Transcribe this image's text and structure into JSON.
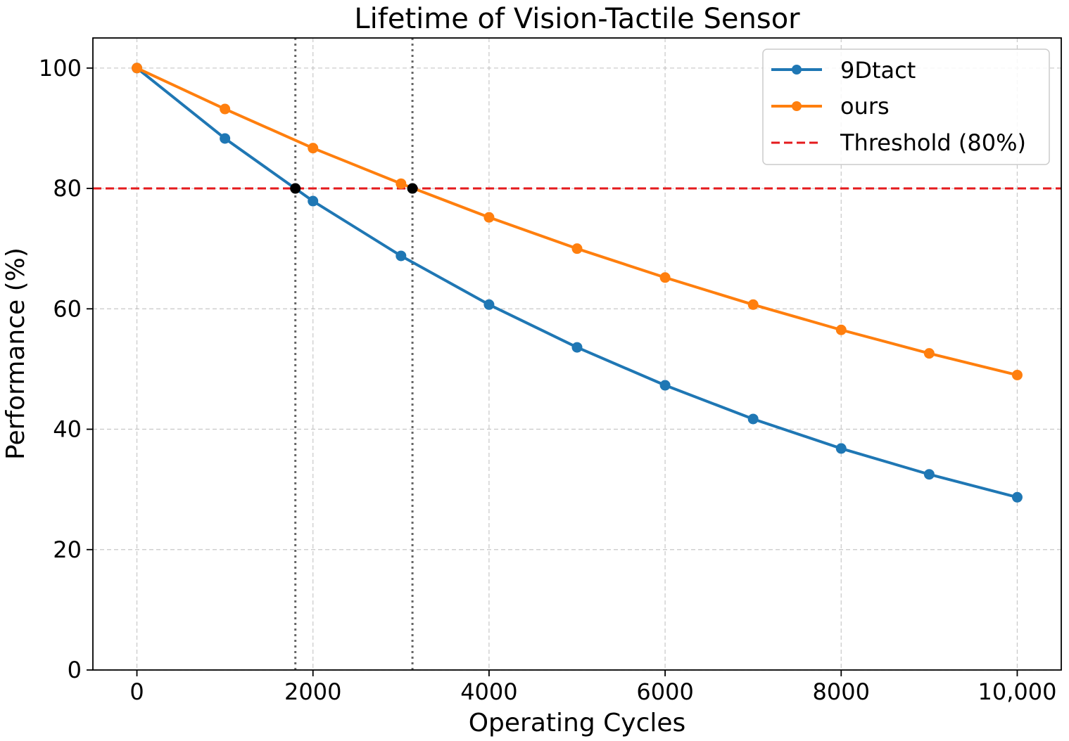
{
  "chart_data": {
    "type": "line",
    "title": "Lifetime of Vision-Tactile Sensor",
    "xlabel": "Operating Cycles",
    "ylabel": "Performance (%)",
    "xlim": [
      -500,
      10500
    ],
    "ylim": [
      0,
      105
    ],
    "x_ticks": [
      0,
      2000,
      4000,
      6000,
      8000,
      10000
    ],
    "x_tick_labels": [
      "0",
      "2000",
      "4000",
      "6000",
      "8000",
      "10,000"
    ],
    "y_ticks": [
      0,
      20,
      40,
      60,
      80,
      100
    ],
    "y_tick_labels": [
      "0",
      "20",
      "40",
      "60",
      "80",
      "100"
    ],
    "grid": true,
    "legend_position": "top-right",
    "x": [
      0,
      1000,
      2000,
      3000,
      4000,
      5000,
      6000,
      7000,
      8000,
      9000,
      10000
    ],
    "series": [
      {
        "name": "9Dtact",
        "color": "#1f77b4",
        "values": [
          100,
          88.3,
          77.9,
          68.8,
          60.7,
          53.6,
          47.3,
          41.7,
          36.8,
          32.5,
          28.7
        ]
      },
      {
        "name": "ours",
        "color": "#ff7f0e",
        "values": [
          100,
          93.2,
          86.7,
          80.8,
          75.2,
          70.0,
          65.2,
          60.7,
          56.5,
          52.6,
          49.0
        ]
      }
    ],
    "threshold": {
      "name": "Threshold (80%)",
      "value": 80,
      "color": "#e41a1c"
    },
    "crossings": [
      {
        "series": "9Dtact",
        "x": 1800,
        "y": 80
      },
      {
        "series": "ours",
        "x": 3130,
        "y": 80
      }
    ]
  }
}
